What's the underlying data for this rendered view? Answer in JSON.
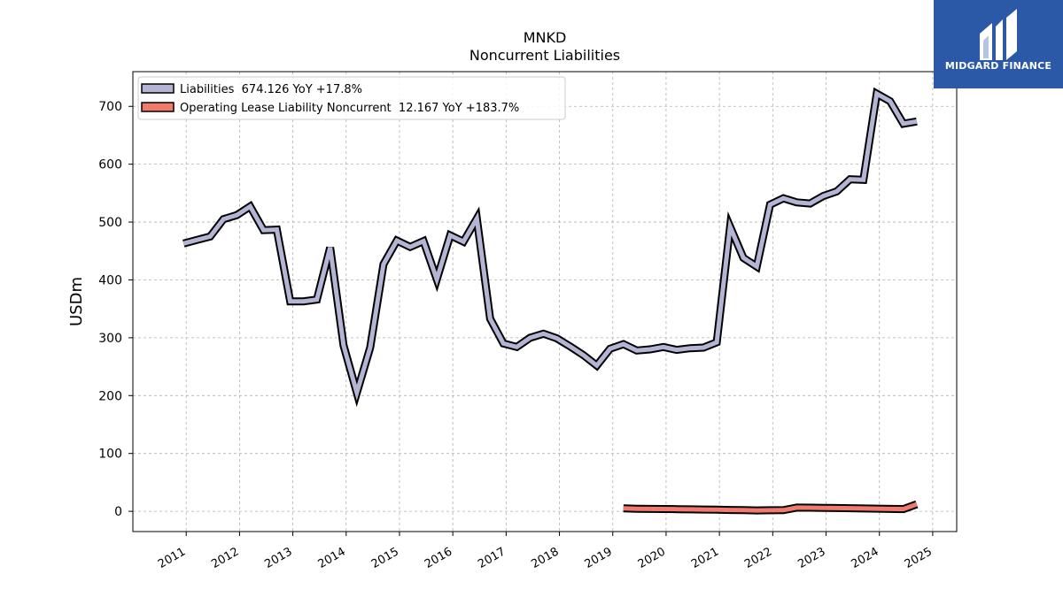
{
  "chart_data": {
    "type": "line",
    "title": "MNKD",
    "subtitle": "Noncurrent  Liabilities",
    "ylabel": "USDm",
    "xlabel": "",
    "ylim": [
      -35,
      760
    ],
    "xlim": [
      2010.0,
      2025.45
    ],
    "grid": true,
    "legend_position": "top-left",
    "yticks": [
      0,
      100,
      200,
      300,
      400,
      500,
      600,
      700
    ],
    "xticks": [
      "2011",
      "2012",
      "2013",
      "2014",
      "2015",
      "2016",
      "2017",
      "2018",
      "2019",
      "2020",
      "2021",
      "2022",
      "2023",
      "2024",
      "2025"
    ],
    "series": [
      {
        "name": "Liabilities  674.126 YoY +17.8%",
        "color": "#b4b4d4",
        "x": [
          2010.95,
          2011.2,
          2011.45,
          2011.7,
          2011.95,
          2012.2,
          2012.45,
          2012.7,
          2012.95,
          2013.2,
          2013.45,
          2013.7,
          2013.95,
          2014.2,
          2014.45,
          2014.7,
          2014.95,
          2015.2,
          2015.45,
          2015.7,
          2015.95,
          2016.2,
          2016.45,
          2016.7,
          2016.95,
          2017.2,
          2017.45,
          2017.7,
          2017.95,
          2018.2,
          2018.45,
          2018.7,
          2018.95,
          2019.2,
          2019.45,
          2019.7,
          2019.95,
          2020.2,
          2020.45,
          2020.7,
          2020.95,
          2021.2,
          2021.45,
          2021.7,
          2021.95,
          2022.2,
          2022.45,
          2022.7,
          2022.95,
          2023.2,
          2023.45,
          2023.7,
          2023.95,
          2024.2,
          2024.45,
          2024.7
        ],
        "values": [
          463,
          469,
          475,
          505,
          512,
          527,
          486,
          487,
          363,
          363,
          366,
          456,
          287,
          205,
          283,
          427,
          468,
          457,
          467,
          401,
          477,
          466,
          506,
          333,
          290,
          284,
          300,
          307,
          299,
          285,
          270,
          252,
          281,
          289,
          278,
          280,
          284,
          279,
          282,
          283,
          292,
          492,
          438,
          423,
          530,
          541,
          534,
          532,
          545,
          553,
          574,
          573,
          722,
          709,
          670,
          674
        ]
      },
      {
        "name": "Operating Lease Liability Noncurrent  12.167 YoY +183.7%",
        "color": "#f07a6b",
        "x": [
          2019.2,
          2019.45,
          2019.7,
          2019.95,
          2020.2,
          2020.45,
          2020.7,
          2020.95,
          2021.2,
          2021.45,
          2021.7,
          2021.95,
          2022.2,
          2022.45,
          2022.7,
          2022.95,
          2023.2,
          2023.45,
          2023.7,
          2023.95,
          2024.2,
          2024.45,
          2024.7
        ],
        "values": [
          5,
          4.5,
          4.2,
          4,
          3.7,
          3.4,
          3,
          2.7,
          2.3,
          2,
          1.6,
          1.8,
          2,
          6.5,
          6.3,
          6,
          5.6,
          5.3,
          4.9,
          4.6,
          4.2,
          3.9,
          12.2
        ]
      }
    ]
  },
  "logo": {
    "text": "MIDGARD FINANCE",
    "bg_color": "#2b59a8"
  }
}
